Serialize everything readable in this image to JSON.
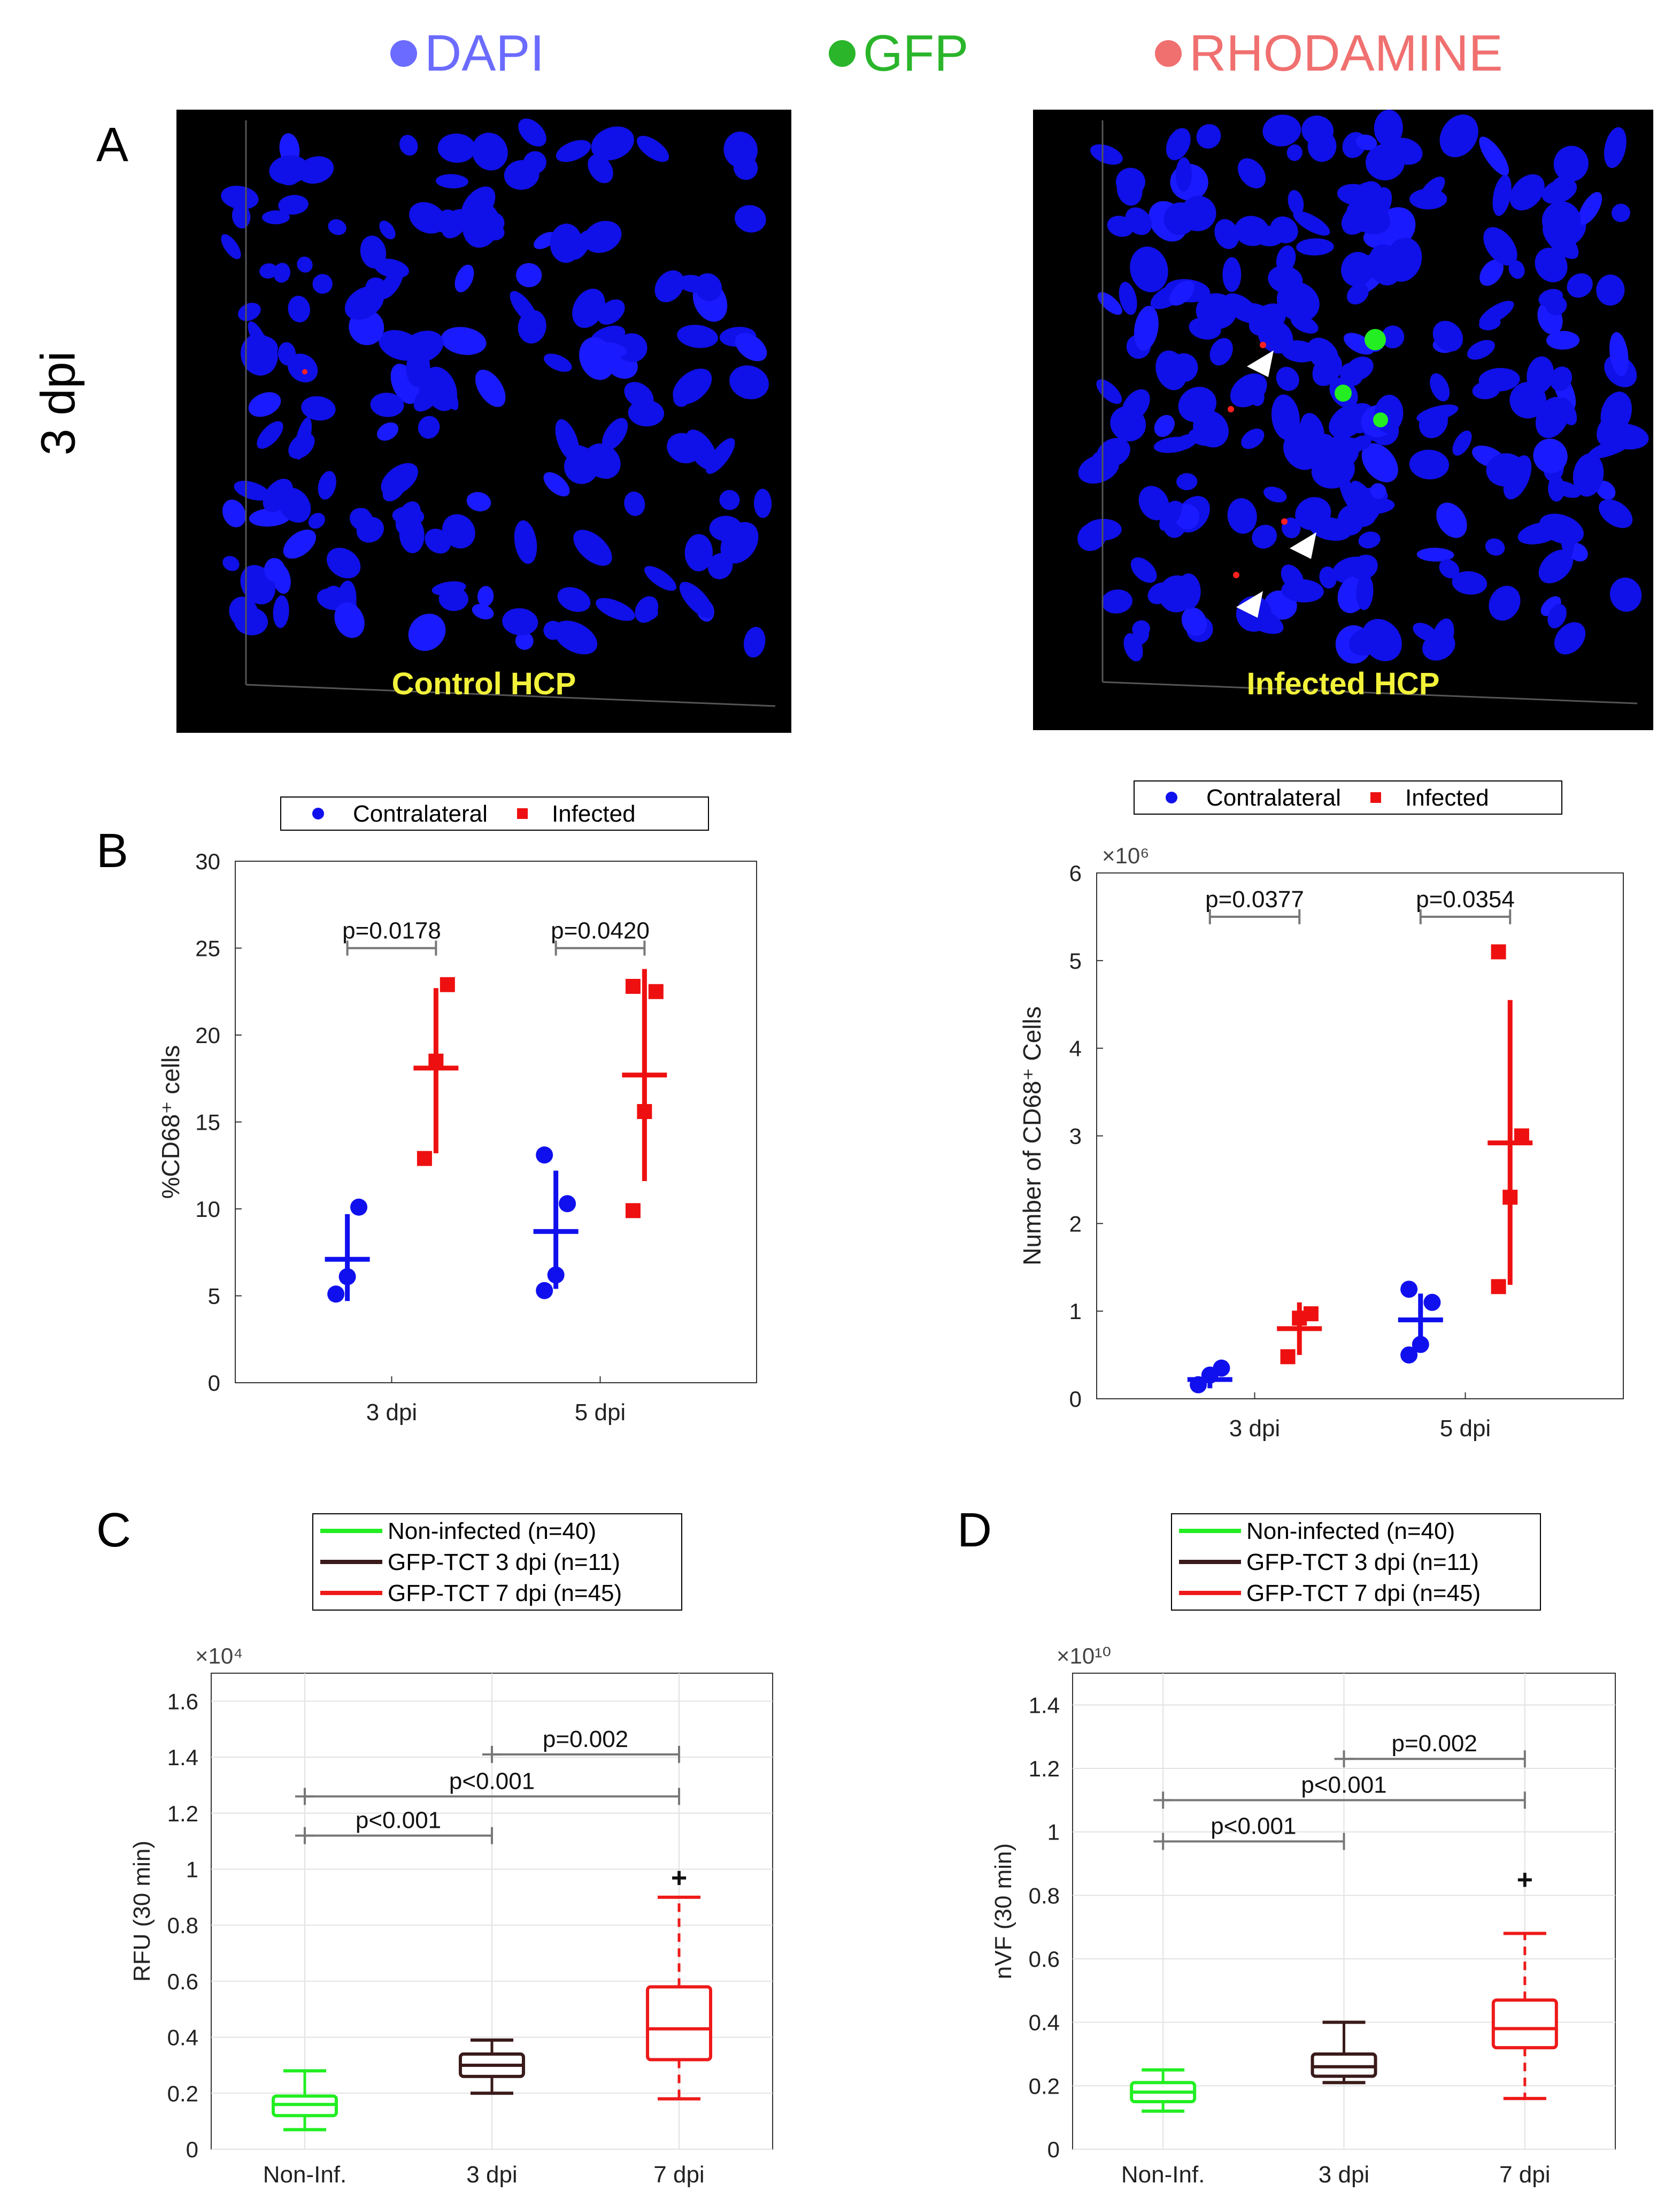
{
  "channel_legend": [
    {
      "label": "DAPI",
      "color": "#6b6bff"
    },
    {
      "label": "GFP",
      "color": "#2ab52a"
    },
    {
      "label": "RHODAMINE",
      "color": "#f07070"
    }
  ],
  "row_label": "3 dpi",
  "panels": {
    "A": {
      "letter": "A",
      "left_caption": "Control HCP",
      "right_caption": "Infected HCP"
    },
    "B": {
      "letter": "B"
    },
    "C": {
      "letter": "C"
    },
    "D": {
      "letter": "D"
    }
  },
  "chart_data": [
    {
      "id": "B-left",
      "type": "scatter",
      "legend": [
        {
          "name": "Contralateral",
          "color": "#1010ee",
          "marker": "circle"
        },
        {
          "name": "Infected",
          "color": "#ee1010",
          "marker": "square"
        }
      ],
      "ylabel": "%CD68⁺ cells",
      "xlabel": "",
      "categories": [
        "3 dpi",
        "5 dpi"
      ],
      "ylim": [
        0,
        30
      ],
      "yticks": [
        "0",
        "5",
        "10",
        "15",
        "20",
        "25",
        "30"
      ],
      "series": [
        {
          "name": "Contralateral",
          "color": "#1010ee",
          "points": [
            [
              0,
              5.1
            ],
            [
              0,
              6.1
            ],
            [
              0,
              10.1
            ],
            [
              1,
              5.3
            ],
            [
              1,
              6.2
            ],
            [
              1,
              10.3
            ],
            [
              1,
              13.1
            ]
          ],
          "mean": [
            7.1,
            8.7
          ],
          "sd": [
            [
              4.7,
              9.7
            ],
            [
              5.4,
              12.2
            ]
          ]
        },
        {
          "name": "Infected",
          "color": "#ee1010",
          "points": [
            [
              0,
              12.9
            ],
            [
              0,
              18.5
            ],
            [
              0,
              22.9
            ],
            [
              1,
              9.9
            ],
            [
              1,
              15.6
            ],
            [
              1,
              22.5
            ],
            [
              1,
              22.8
            ]
          ],
          "mean": [
            18.1,
            17.7
          ],
          "sd": [
            [
              13.2,
              22.7
            ],
            [
              11.6,
              23.8
            ]
          ]
        }
      ],
      "annotations": [
        {
          "text": "p=0.0178",
          "y": 25
        },
        {
          "text": "p=0.0420",
          "y": 25
        }
      ]
    },
    {
      "id": "B-right",
      "type": "scatter",
      "legend": [
        {
          "name": "Contralateral",
          "color": "#1010ee",
          "marker": "circle"
        },
        {
          "name": "Infected",
          "color": "#ee1010",
          "marker": "square"
        }
      ],
      "ylabel": "Number of CD68⁺ Cells",
      "xlabel": "",
      "exponent": "×10⁶",
      "categories": [
        "3 dpi",
        "5 dpi"
      ],
      "ylim": [
        0,
        6
      ],
      "yticks": [
        "0",
        "1",
        "2",
        "3",
        "4",
        "5",
        "6"
      ],
      "series": [
        {
          "name": "Contralateral",
          "color": "#1010ee",
          "points": [
            [
              0,
              0.16
            ],
            [
              0,
              0.27
            ],
            [
              0,
              0.35
            ],
            [
              1,
              0.5
            ],
            [
              1,
              0.62
            ],
            [
              1,
              1.1
            ],
            [
              1,
              1.25
            ]
          ],
          "mean": [
            0.22,
            0.9
          ],
          "sd": [
            [
              0.12,
              0.33
            ],
            [
              0.62,
              1.2
            ]
          ]
        },
        {
          "name": "Infected",
          "color": "#ee1010",
          "points": [
            [
              0,
              0.48
            ],
            [
              0,
              0.92
            ],
            [
              0,
              0.97
            ],
            [
              1,
              1.28
            ],
            [
              1,
              2.3
            ],
            [
              1,
              3.0
            ],
            [
              1,
              5.1
            ]
          ],
          "mean": [
            0.8,
            2.92
          ],
          "sd": [
            [
              0.5,
              1.1
            ],
            [
              1.3,
              4.55
            ]
          ]
        }
      ],
      "annotations": [
        {
          "text": "p=0.0377",
          "y": 5.5
        },
        {
          "text": "p=0.0354",
          "y": 5.5
        }
      ]
    },
    {
      "id": "C",
      "type": "box",
      "legend": [
        {
          "name": "Non-infected (n=40)",
          "color": "#22ee22"
        },
        {
          "name": "GFP-TCT 3 dpi (n=11)",
          "color": "#3a1a1a"
        },
        {
          "name": "GFP-TCT 7 dpi (n=45)",
          "color": "#ee1a1a"
        }
      ],
      "ylabel": "RFU (30 min)",
      "exponent": "×10⁴",
      "categories": [
        "Non-Inf.",
        "3 dpi",
        "7 dpi"
      ],
      "ylim": [
        0,
        1.7
      ],
      "yticks": [
        "0",
        "0.2",
        "0.4",
        "0.6",
        "0.8",
        "1",
        "1.2",
        "1.4",
        "1.6"
      ],
      "boxes": [
        {
          "whisker_low": 0.07,
          "q1": 0.12,
          "median": 0.16,
          "q3": 0.19,
          "whisker_high": 0.28,
          "color": "#22ee22"
        },
        {
          "whisker_low": 0.2,
          "q1": 0.26,
          "median": 0.3,
          "q3": 0.34,
          "whisker_high": 0.39,
          "color": "#3a1a1a"
        },
        {
          "whisker_low": 0.18,
          "q1": 0.32,
          "median": 0.43,
          "q3": 0.58,
          "whisker_high": 0.9,
          "color": "#ee1a1a",
          "outliers": [
            0.97
          ]
        }
      ],
      "comparisons": [
        {
          "from": 0,
          "to": 1,
          "y": 1.12,
          "text": "p<0.001"
        },
        {
          "from": 0,
          "to": 2,
          "y": 1.26,
          "text": "p<0.001"
        },
        {
          "from": 1,
          "to": 2,
          "y": 1.41,
          "text": "p=0.002"
        }
      ]
    },
    {
      "id": "D",
      "type": "box",
      "legend": [
        {
          "name": "Non-infected (n=40)",
          "color": "#22ee22"
        },
        {
          "name": "GFP-TCT 3 dpi (n=11)",
          "color": "#3a1a1a"
        },
        {
          "name": "GFP-TCT 7 dpi (n=45)",
          "color": "#ee1a1a"
        }
      ],
      "ylabel": "nVF (30 min)",
      "exponent": "×10¹⁰",
      "categories": [
        "Non-Inf.",
        "3 dpi",
        "7 dpi"
      ],
      "ylim": [
        0,
        1.5
      ],
      "yticks": [
        "0",
        "0.2",
        "0.4",
        "0.6",
        "0.8",
        "1",
        "1.2",
        "1.4"
      ],
      "boxes": [
        {
          "whisker_low": 0.12,
          "q1": 0.15,
          "median": 0.18,
          "q3": 0.21,
          "whisker_high": 0.25,
          "color": "#22ee22"
        },
        {
          "whisker_low": 0.21,
          "q1": 0.23,
          "median": 0.26,
          "q3": 0.3,
          "whisker_high": 0.4,
          "color": "#3a1a1a"
        },
        {
          "whisker_low": 0.16,
          "q1": 0.32,
          "median": 0.38,
          "q3": 0.47,
          "whisker_high": 0.68,
          "color": "#ee1a1a",
          "outliers": [
            0.85
          ]
        }
      ],
      "comparisons": [
        {
          "from": 0,
          "to": 1,
          "y": 0.97,
          "text": "p<0.001"
        },
        {
          "from": 0,
          "to": 2,
          "y": 1.1,
          "text": "p<0.001"
        },
        {
          "from": 1,
          "to": 2,
          "y": 1.23,
          "text": "p=0.002"
        }
      ]
    }
  ]
}
